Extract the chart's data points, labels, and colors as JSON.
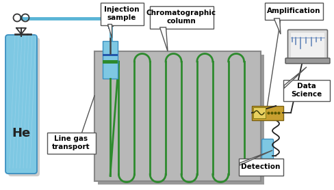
{
  "labels": {
    "He": "He",
    "line_gas": "Line gas\ntransport",
    "injection": "Injection\nsample",
    "column": "Chromatographic\ncolumn",
    "detection": "Detection",
    "amplification": "Amplification",
    "data_science": "Data\nScience"
  },
  "colors": {
    "tank_body": "#7ec8e3",
    "tank_outline": "#3a8fc0",
    "tube_blue": "#5ab4d6",
    "oven_bg": "#b8b8b8",
    "oven_outline": "#888888",
    "oven_shadow": "#999999",
    "column_green": "#2d8a2d",
    "injector_blue": "#7ec8e3",
    "injector_outline": "#3a8fc0",
    "injector_green": "#2d8a2d",
    "detector_blue": "#7ec8e3",
    "detector_brown": "#8B6914",
    "amplifier_bg": "#c8a030",
    "amplifier_outline": "#7a6010",
    "wire_color": "#222222",
    "laptop_body": "#aaaaaa",
    "laptop_screen": "#dddddd",
    "laptop_screen_inner": "#f0f0f0",
    "peak_color": "#555599",
    "callout_fill": "#ffffff",
    "callout_outline": "#444444",
    "bg": "#ffffff"
  }
}
